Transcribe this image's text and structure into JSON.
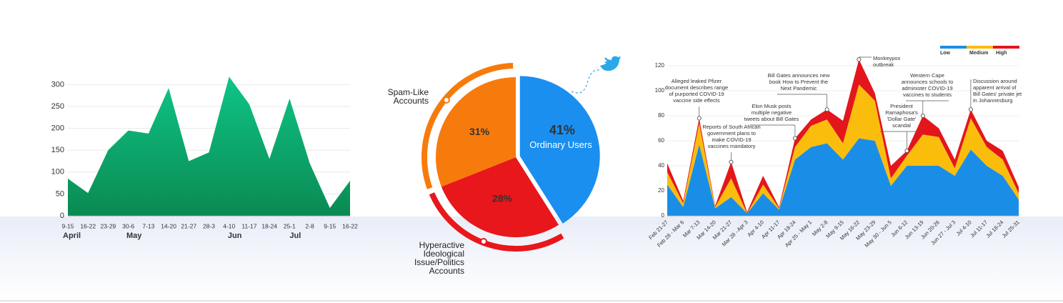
{
  "chart_data": [
    {
      "type": "area",
      "categories": [
        "9-15",
        "16-22",
        "23-29",
        "30-6",
        "7-13",
        "14-20",
        "21-27",
        "28-3",
        "4-10",
        "11-17",
        "18-24",
        "25-1",
        "2-8",
        "9-15",
        "16-22"
      ],
      "months": [
        "April",
        null,
        null,
        "May",
        null,
        null,
        null,
        null,
        "Jun",
        null,
        null,
        "Jul",
        null,
        null,
        null
      ],
      "values": [
        85,
        52,
        150,
        195,
        188,
        292,
        125,
        145,
        318,
        255,
        130,
        268,
        120,
        18,
        80
      ],
      "color": "#0fa86c",
      "ylim": [
        0,
        330
      ],
      "yticks": [
        0,
        50,
        100,
        150,
        200,
        250,
        300
      ],
      "grid": true
    },
    {
      "type": "pie",
      "categories": [
        "Ordinary Users",
        "Hyperactive Ideological Issue/Politics Accounts",
        "Spam-Like Accounts"
      ],
      "values": [
        41,
        28,
        31
      ],
      "value_labels": [
        "41%",
        "28%",
        "31%"
      ],
      "colors": [
        "#1a8ff0",
        "#e8171b",
        "#f77b0c"
      ]
    },
    {
      "type": "stacked_area",
      "categories": [
        "Feb 21-27",
        "Feb 28 - Mar 6",
        "Mar 7-13",
        "Mar 14-20",
        "Mar 21-27",
        "Mar 28 - Apr 3",
        "Apr 4-10",
        "Apr 11-17",
        "Apr 18-24",
        "Apr 25 - May 1",
        "May 2-8",
        "May 9-15",
        "May 16-22",
        "May 23-29",
        "May 30 - Jun 5",
        "Jun 6-12",
        "Jun 13-19",
        "Jun 20-26",
        "Jun 27 - Jul 3",
        "Jul 4-10",
        "Jul 11-17",
        "Jul 18-24",
        "Jul 25-31"
      ],
      "series": [
        {
          "name": "Low",
          "color": "#1a8ee6",
          "values": [
            25,
            7,
            57,
            6,
            15,
            2,
            18,
            5,
            45,
            55,
            58,
            45,
            62,
            60,
            24,
            40,
            40,
            40,
            32,
            53,
            40,
            32,
            13
          ]
        },
        {
          "name": "Medium",
          "color": "#fbbd0c",
          "values": [
            10,
            3,
            17,
            1,
            15,
            0,
            7,
            1,
            10,
            17,
            19,
            13,
            43,
            32,
            6,
            8,
            25,
            23,
            6,
            25,
            15,
            13,
            5
          ]
        },
        {
          "name": "High",
          "color": "#e3161c",
          "values": [
            7,
            2,
            4,
            1,
            13,
            1,
            7,
            1,
            7,
            5,
            8,
            18,
            20,
            6,
            10,
            4,
            15,
            7,
            7,
            7,
            5,
            7,
            5
          ]
        }
      ],
      "ylim": [
        0,
        128
      ],
      "yticks": [
        0,
        20,
        40,
        60,
        80,
        100,
        120
      ],
      "grid": true,
      "legend": "top-right",
      "annotations": [
        {
          "category": "Mar 7-13",
          "lines": [
            "Alleged leaked Pfizer",
            "document describes range",
            "of purported COVID-19",
            "vaccine side effects"
          ]
        },
        {
          "category": "Mar 21-27",
          "lines": [
            "Reports of South African",
            "government plans to",
            "make COVID-19",
            "vaccines mandatory"
          ]
        },
        {
          "category": "Apr 18-24",
          "lines": [
            "Elon Musk posts",
            "multiple negative",
            "tweets about Bill Gates"
          ]
        },
        {
          "category": "May 2-8",
          "lines": [
            "Bill Gates announces new",
            "book How to Prevent the",
            "Next Pandemic"
          ]
        },
        {
          "category": "May 16-22",
          "lines": [
            "Monkeypox",
            "outbreak"
          ]
        },
        {
          "category": "Jun 6-12",
          "lines": [
            "President",
            "Ramaphosa's",
            "'Dollar Gate'",
            "scandal"
          ]
        },
        {
          "category": "Jun 13-19",
          "lines": [
            "Western Cape",
            "announces schools to",
            "administer COVID-19",
            "vaccines to students"
          ]
        },
        {
          "category": "Jul 4-10",
          "lines": [
            "Discussion around",
            "apparent arrival of",
            "Bill Gates' private jet",
            "in Johannesburg"
          ]
        }
      ]
    }
  ]
}
